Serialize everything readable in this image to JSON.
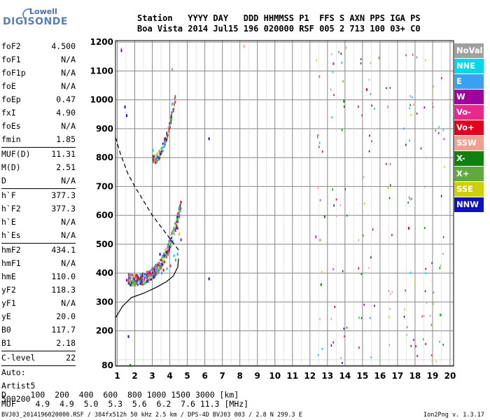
{
  "logo": {
    "top": "Lowell",
    "main": "DIGISONDE"
  },
  "header": {
    "line1": "Station   YYYY DAY   DDD HHMMSS P1  FFS S AXN PPS IGA PS",
    "line2": "Boa Vista 2014 Jul15 196 020000 RSF 005 2 713 100 03+ C0"
  },
  "params": [
    {
      "name": "foF2",
      "value": "4.500"
    },
    {
      "name": "foF1",
      "value": "N/A"
    },
    {
      "name": "foF1p",
      "value": "N/A"
    },
    {
      "name": "foE",
      "value": "N/A"
    },
    {
      "name": "foEp",
      "value": "0.47"
    },
    {
      "name": "fxI",
      "value": "4.90"
    },
    {
      "name": "foEs",
      "value": "N/A"
    },
    {
      "name": "fmin",
      "value": "1.85"
    },
    {
      "sep": true
    },
    {
      "name": "MUF(D)",
      "value": "11.31"
    },
    {
      "name": "M(D)",
      "value": "2.51"
    },
    {
      "name": "D",
      "value": "N/A"
    },
    {
      "sep": true
    },
    {
      "name": "h`F",
      "value": "377.3"
    },
    {
      "name": "h`F2",
      "value": "377.3"
    },
    {
      "name": "h`E",
      "value": "N/A"
    },
    {
      "name": "h`Es",
      "value": "N/A"
    },
    {
      "sep": true
    },
    {
      "name": "hmF2",
      "value": "434.1"
    },
    {
      "name": "hmF1",
      "value": "N/A"
    },
    {
      "name": "hmE",
      "value": "110.0"
    },
    {
      "name": "yF2",
      "value": "118.3"
    },
    {
      "name": "yF1",
      "value": "N/A"
    },
    {
      "name": "yE",
      "value": "20.0"
    },
    {
      "name": "B0",
      "value": "117.7"
    },
    {
      "name": "B1",
      "value": "2.18"
    },
    {
      "sep": true
    },
    {
      "name": "C-level",
      "value": "22"
    },
    {
      "sep": true
    },
    {
      "text": "Auto:"
    },
    {
      "text": "Artist5"
    },
    {
      "text": "500200"
    }
  ],
  "legend": [
    {
      "label": "NoVal",
      "color": "#a0a0a0"
    },
    {
      "label": "NNE",
      "color": "#00d8e8"
    },
    {
      "label": "E",
      "color": "#3aa0f0"
    },
    {
      "label": "W",
      "color": "#a000a0"
    },
    {
      "label": "Vo-",
      "color": "#e82890"
    },
    {
      "label": "Vo+",
      "color": "#e00020"
    },
    {
      "label": "SSW",
      "color": "#f0a090"
    },
    {
      "label": "X-",
      "color": "#108010"
    },
    {
      "label": "X+",
      "color": "#60a840"
    },
    {
      "label": "SSE",
      "color": "#d0d000"
    },
    {
      "label": "NNW",
      "color": "#1010c0"
    }
  ],
  "footer": {
    "d_row": "D     100  200  400  600  800 1000 1500 3000 [km]",
    "muf_row": "MUF    4.9  4.9  5.0  5.3  5.6  6.2  7.6 11.3 [MHz]",
    "file_line": "BVJ03_2014196020000.RSF / 384fx512h 50 kHz 2.5 km / DPS-4D BVJ03 003 / 2.8 N 299.3 E",
    "version": "Ion2Png v. 1.3.17"
  },
  "chart_data": {
    "type": "scatter",
    "xlim": [
      0.9,
      20.2
    ],
    "ylim": [
      78,
      1205
    ],
    "x_ticks": [
      1,
      2,
      3,
      4,
      5,
      6,
      7,
      8,
      9,
      10,
      11,
      12,
      13,
      14,
      15,
      16,
      17,
      18,
      19,
      20
    ],
    "y_ticks": [
      80,
      200,
      300,
      400,
      500,
      600,
      700,
      800,
      900,
      1000,
      1100,
      1200
    ],
    "grid": true,
    "legend_position": "right",
    "series": [
      {
        "legend": "NoVal",
        "color": "#a0a0a0",
        "points": [
          [
            1.2,
            1180
          ],
          [
            4.1,
            1110
          ],
          [
            13.6,
            1170
          ],
          [
            15.9,
            1150
          ],
          [
            12.5,
            1085
          ]
        ]
      },
      {
        "legend": "NNE",
        "color": "#00d8e8",
        "points": [
          [
            3.2,
            400
          ],
          [
            3.8,
            420
          ],
          [
            4.2,
            465
          ],
          [
            3.0,
            830
          ]
        ]
      },
      {
        "legend": "E",
        "color": "#3aa0f0",
        "points": [
          [
            2.6,
            390
          ],
          [
            3.5,
            405
          ],
          [
            4.4,
            470
          ],
          [
            4.1,
            990
          ]
        ]
      },
      {
        "legend": "W",
        "color": "#a000a0",
        "points": [
          [
            1.5,
            380
          ],
          [
            2.4,
            395
          ],
          [
            4.6,
            520
          ],
          [
            1.2,
            1175
          ],
          [
            4.4,
            560
          ]
        ]
      },
      {
        "legend": "Vo-",
        "color": "#e82890",
        "points": [
          [
            2.9,
            400
          ],
          [
            4.0,
            430
          ],
          [
            4.5,
            600
          ],
          [
            13.3,
            1130
          ],
          [
            12.3,
            530
          ]
        ]
      },
      {
        "legend": "Vo+",
        "color": "#e00020",
        "points": [
          [
            2.2,
            385
          ],
          [
            3.6,
            415
          ],
          [
            4.6,
            650
          ],
          [
            17.6,
            560
          ],
          [
            15.2,
            1040
          ]
        ]
      },
      {
        "legend": "SSW",
        "color": "#f0a090",
        "points": [
          [
            8.2,
            1190
          ],
          [
            14.0,
            1185
          ],
          [
            16.4,
            980
          ]
        ]
      },
      {
        "legend": "X-",
        "color": "#108010",
        "points": [
          [
            1.7,
            85
          ],
          [
            12.6,
            365
          ],
          [
            13.9,
            1000
          ],
          [
            12.8,
            600
          ]
        ]
      },
      {
        "legend": "X+",
        "color": "#60a840",
        "points": [
          [
            3.3,
            410
          ],
          [
            4.3,
            450
          ],
          [
            19.4,
            260
          ]
        ]
      },
      {
        "legend": "SSE",
        "color": "#d0d000",
        "points": [
          [
            1.9,
            395
          ],
          [
            4.5,
            540
          ]
        ]
      },
      {
        "legend": "NNW",
        "color": "#1010c0",
        "points": [
          [
            1.4,
            980
          ],
          [
            1.5,
            950
          ],
          [
            6.2,
            870
          ],
          [
            6.2,
            385
          ],
          [
            1.6,
            185
          ],
          [
            3.4,
            470
          ]
        ]
      }
    ],
    "lines": [
      {
        "name": "dashed",
        "style": "dashed",
        "points": [
          [
            0.9,
            870
          ],
          [
            1.2,
            810
          ],
          [
            1.6,
            745
          ],
          [
            2.0,
            700
          ],
          [
            2.5,
            650
          ],
          [
            3.0,
            600
          ],
          [
            3.5,
            560
          ],
          [
            4.0,
            520
          ],
          [
            4.5,
            480
          ]
        ]
      },
      {
        "name": "solid",
        "style": "solid",
        "points": [
          [
            0.9,
            245
          ],
          [
            1.3,
            285
          ],
          [
            1.8,
            315
          ],
          [
            2.5,
            330
          ],
          [
            3.2,
            350
          ],
          [
            3.8,
            370
          ],
          [
            4.2,
            390
          ],
          [
            4.45,
            420
          ],
          [
            4.5,
            450
          ]
        ]
      }
    ]
  }
}
